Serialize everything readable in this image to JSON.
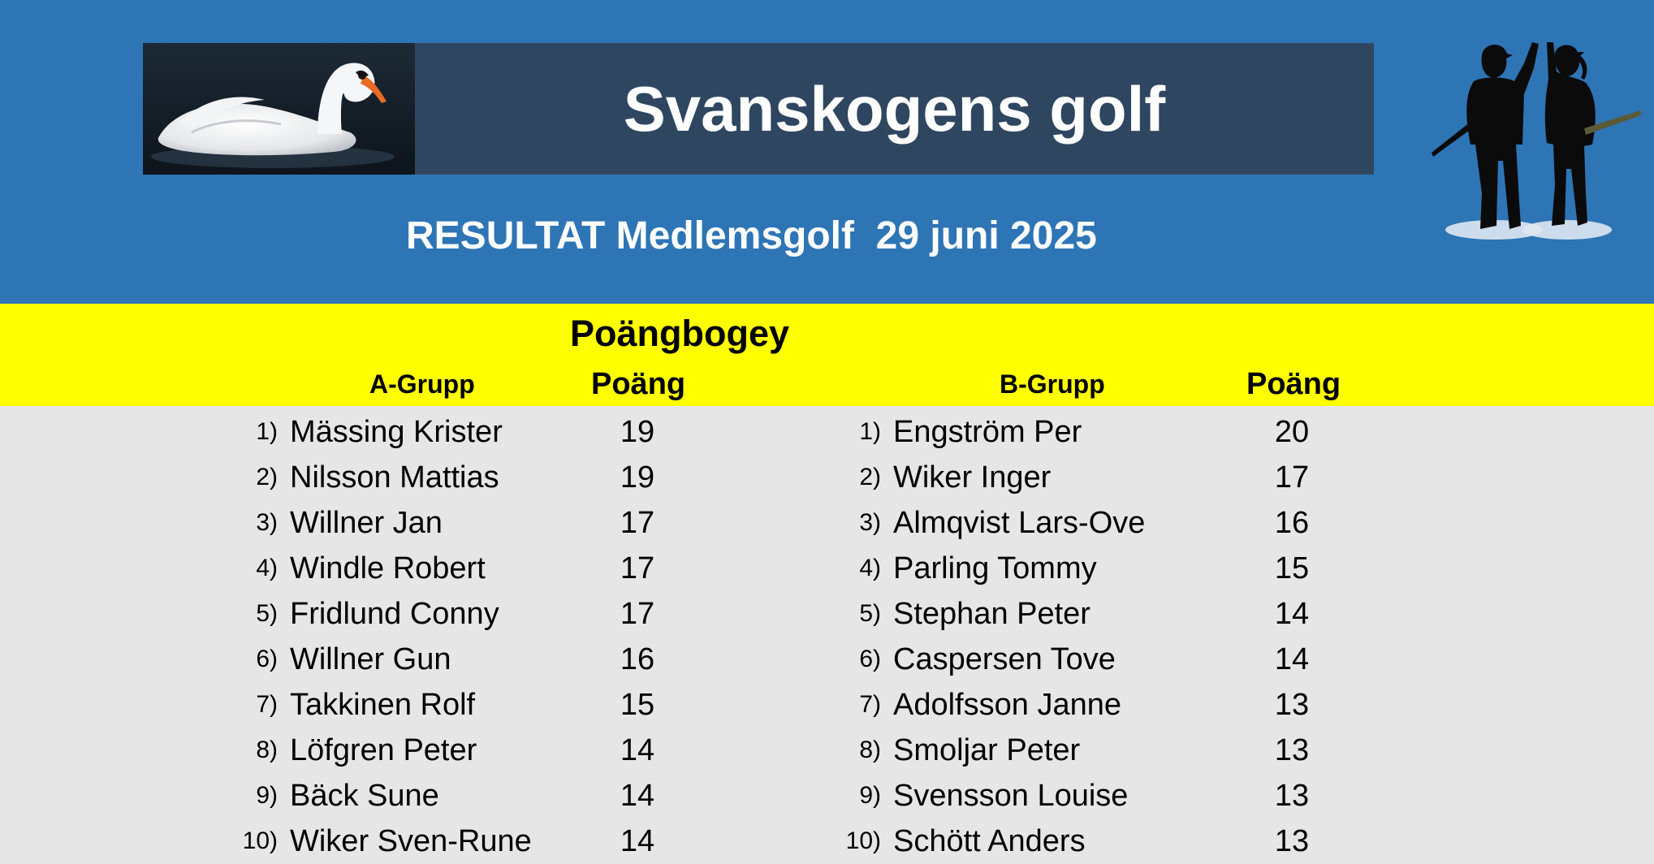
{
  "header": {
    "title": "Svanskogens golf",
    "subtitle": "RESULTAT Medlemsgolf  29 juni 2025",
    "colors": {
      "header_bg": "#2e75b6",
      "title_bar_bg": "#2f4661",
      "band_bg": "#ffff00",
      "table_bg": "#e6e6e6"
    }
  },
  "section": {
    "title": "Poängbogey"
  },
  "group_a": {
    "label": "A-Grupp",
    "points_label": "Poäng",
    "rows": [
      {
        "rank": "1)",
        "name": "Mässing Krister",
        "points": "19"
      },
      {
        "rank": "2)",
        "name": "Nilsson Mattias",
        "points": "19"
      },
      {
        "rank": "3)",
        "name": "Willner Jan",
        "points": "17"
      },
      {
        "rank": "4)",
        "name": "Windle Robert",
        "points": "17"
      },
      {
        "rank": "5)",
        "name": "Fridlund Conny",
        "points": "17"
      },
      {
        "rank": "6)",
        "name": "Willner Gun",
        "points": "16"
      },
      {
        "rank": "7)",
        "name": "Takkinen Rolf",
        "points": "15"
      },
      {
        "rank": "8)",
        "name": "Löfgren Peter",
        "points": "14"
      },
      {
        "rank": "9)",
        "name": "Bäck Sune",
        "points": "14"
      },
      {
        "rank": "10)",
        "name": "Wiker Sven-Rune",
        "points": "14"
      }
    ]
  },
  "group_b": {
    "label": "B-Grupp",
    "points_label": "Poäng",
    "rows": [
      {
        "rank": "1)",
        "name": "Engström Per",
        "points": "20"
      },
      {
        "rank": "2)",
        "name": "Wiker Inger",
        "points": "17"
      },
      {
        "rank": "3)",
        "name": "Almqvist Lars-Ove",
        "points": "16"
      },
      {
        "rank": "4)",
        "name": "Parling Tommy",
        "points": "15"
      },
      {
        "rank": "5)",
        "name": "Stephan Peter",
        "points": "14"
      },
      {
        "rank": "6)",
        "name": "Caspersen Tove",
        "points": "14"
      },
      {
        "rank": "7)",
        "name": "Adolfsson Janne",
        "points": "13"
      },
      {
        "rank": "8)",
        "name": "Smoljar Peter",
        "points": "13"
      },
      {
        "rank": "9)",
        "name": "Svensson Louise",
        "points": "13"
      },
      {
        "rank": "10)",
        "name": "Schött Anders",
        "points": "13"
      }
    ]
  },
  "images": {
    "left": "swan-photo",
    "right": "golfers-high-five-silhouette"
  }
}
